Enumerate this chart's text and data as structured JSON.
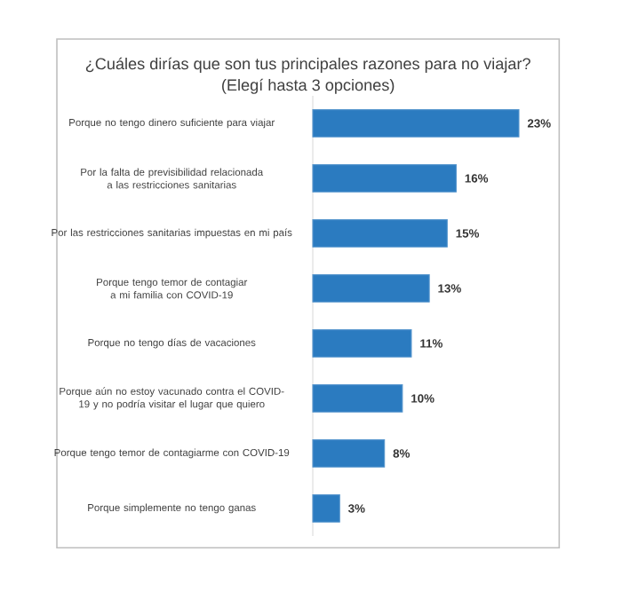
{
  "chart_data": {
    "type": "bar",
    "orientation": "horizontal",
    "title": "¿Cuáles dirías que son tus principales razones para no viajar?",
    "subtitle": "(Elegí hasta 3 opciones)",
    "categories": [
      "Porque no tengo dinero suficiente para viajar",
      "Por la falta de previsibilidad relacionada a las restricciones sanitarias",
      "Por las restricciones sanitarias impuestas en mi país",
      "Porque tengo temor de contagiar a mi familia con COVID-19",
      "Porque no tengo días de vacaciones",
      "Porque aún no estoy vacunado contra el COVID-19 y no podría visitar el lugar que quiero",
      "Porque tengo temor de contagiarme con COVID-19",
      "Porque simplemente no tengo ganas"
    ],
    "values": [
      23,
      16,
      15,
      13,
      11,
      10,
      8,
      3
    ],
    "value_labels": [
      "23%",
      "16%",
      "15%",
      "13%",
      "11%",
      "10%",
      "8%",
      "3%"
    ],
    "color": "#2b7bc0"
  }
}
